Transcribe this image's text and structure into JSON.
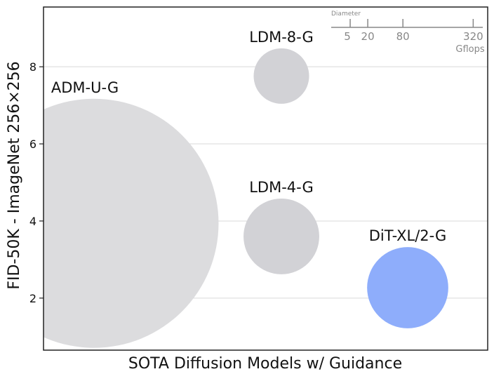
{
  "chart_data": {
    "type": "scatter",
    "title": "",
    "xlabel": "SOTA Diffusion Models w/ Guidance",
    "ylabel": "FID-50K - ImageNet 256×256",
    "ylim": [
      0.65,
      9.55
    ],
    "yticks": [
      2,
      4,
      6,
      8
    ],
    "grid": "horizontal",
    "points": [
      {
        "label": "ADM-U-G",
        "x": 0,
        "y": 3.94,
        "gflops": 2240,
        "color": "#dcdcde"
      },
      {
        "label": "LDM-8-G",
        "x": 1,
        "y": 7.76,
        "gflops": 111,
        "color": "#d2d2d6"
      },
      {
        "label": "LDM-4-G",
        "x": 1,
        "y": 3.6,
        "gflops": 207,
        "color": "#d2d2d6"
      },
      {
        "label": "DiT-XL/2-G",
        "x": 2,
        "y": 2.27,
        "gflops": 238,
        "color": "#8eadfb"
      }
    ],
    "size_legend": {
      "title": "Diameter",
      "values": [
        5,
        20,
        80,
        320
      ],
      "tick_labels": [
        "5",
        "20",
        "80",
        "320"
      ],
      "unit": "Gflops"
    }
  }
}
